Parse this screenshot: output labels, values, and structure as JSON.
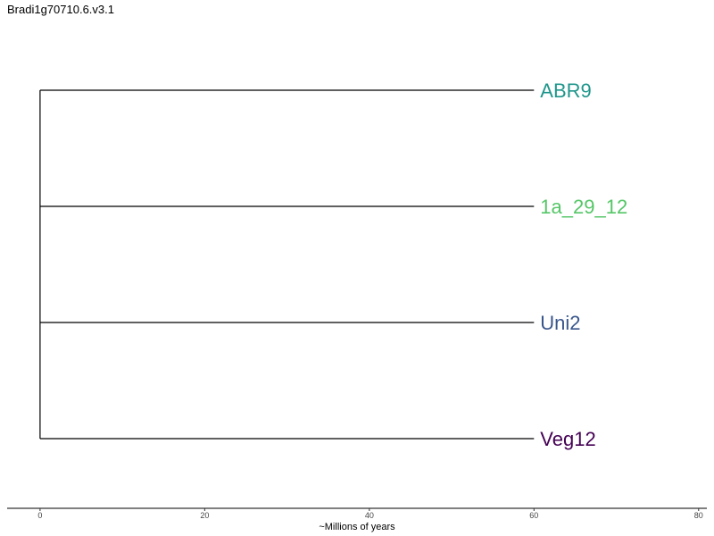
{
  "title": "Bradi1g70710.6.v3.1",
  "tree": {
    "tips": [
      {
        "label": "ABR9",
        "color": "#1f968b",
        "branch_length": 60
      },
      {
        "label": "1a_29_12",
        "color": "#55c667",
        "branch_length": 60
      },
      {
        "label": "Uni2",
        "color": "#39568c",
        "branch_length": 60
      },
      {
        "label": "Veg12",
        "color": "#440154",
        "branch_length": 60
      }
    ],
    "line_color": "#000000"
  },
  "axis": {
    "title": "~Millions of years",
    "min": -4,
    "max": 81,
    "ticks": [
      "0",
      "20",
      "40",
      "60",
      "80"
    ]
  }
}
